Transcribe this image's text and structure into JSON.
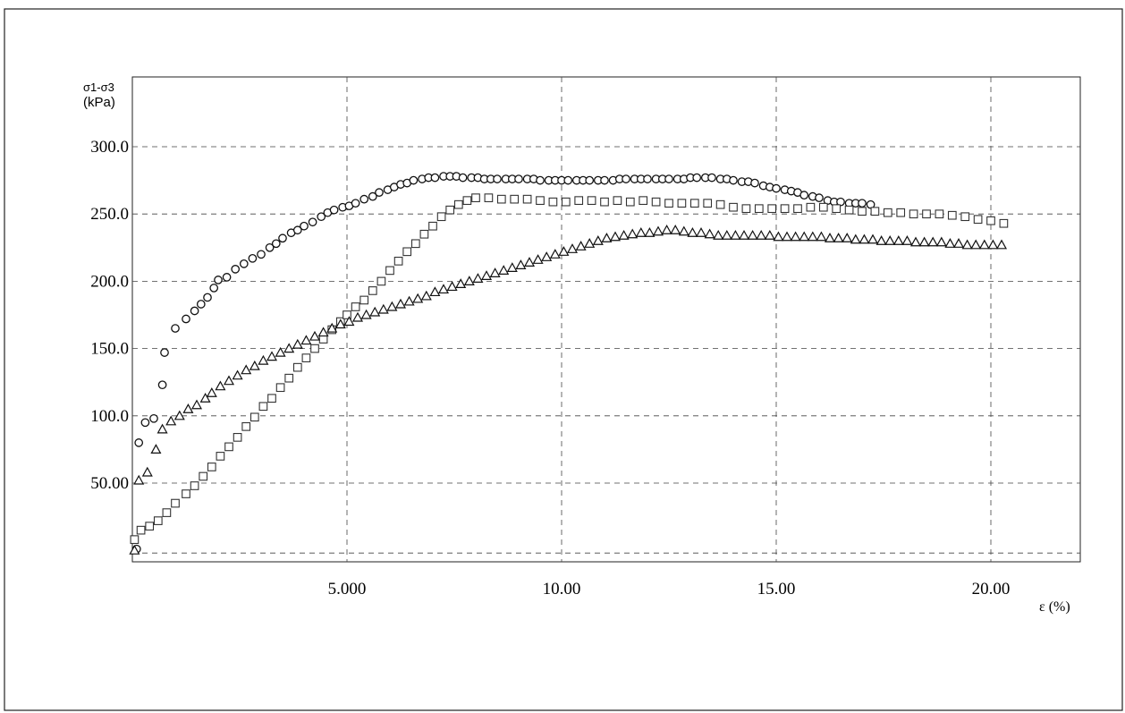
{
  "chart_data": {
    "type": "scatter",
    "ylabel_symbol": "σ1-σ3",
    "ylabel_unit": "(kPa)",
    "xlabel": "ε (%)",
    "xlim": [
      0,
      22.2
    ],
    "ylim": [
      -5,
      350
    ],
    "x_ticks": [
      {
        "value": 5,
        "label": "5.000"
      },
      {
        "value": 10,
        "label": "10.00"
      },
      {
        "value": 15,
        "label": "15.00"
      },
      {
        "value": 20,
        "label": "20.00"
      }
    ],
    "y_ticks": [
      {
        "value": 50,
        "label": "50.00"
      },
      {
        "value": 100,
        "label": "100.0"
      },
      {
        "value": 150,
        "label": "150.0"
      },
      {
        "value": 200,
        "label": "200.0"
      },
      {
        "value": 250,
        "label": "250.0"
      },
      {
        "value": 300,
        "label": "300.0"
      }
    ],
    "grid": true,
    "series": [
      {
        "marker": "circle",
        "x": [
          0.1,
          0.15,
          0.3,
          0.5,
          0.7,
          0.75,
          1.0,
          1.25,
          1.45,
          1.6,
          1.75,
          1.9,
          2.0,
          2.2,
          2.4,
          2.6,
          2.8,
          3.0,
          3.2,
          3.35,
          3.5,
          3.7,
          3.85,
          4.0,
          4.2,
          4.4,
          4.55,
          4.7,
          4.9,
          5.05,
          5.2,
          5.4,
          5.6,
          5.75,
          5.95,
          6.1,
          6.25,
          6.4,
          6.55,
          6.75,
          6.9,
          7.05,
          7.25,
          7.4,
          7.55,
          7.7,
          7.9,
          8.05,
          8.2,
          8.35,
          8.5,
          8.7,
          8.85,
          9.0,
          9.2,
          9.35,
          9.5,
          9.7,
          9.85,
          10.0,
          10.15,
          10.35,
          10.5,
          10.65,
          10.85,
          11.0,
          11.2,
          11.35,
          11.5,
          11.7,
          11.85,
          12.0,
          12.2,
          12.35,
          12.5,
          12.7,
          12.85,
          13.0,
          13.15,
          13.35,
          13.5,
          13.7,
          13.85,
          14.0,
          14.2,
          14.35,
          14.5,
          14.7,
          14.85,
          15.0,
          15.2,
          15.35,
          15.5,
          15.65,
          15.85,
          16.0,
          16.2,
          16.35,
          16.5,
          16.7,
          16.85,
          17.0,
          17.2
        ],
        "y": [
          1,
          80,
          95,
          98,
          123,
          147,
          165,
          172,
          178,
          183,
          188,
          195,
          201,
          203,
          209,
          213,
          217,
          220,
          225,
          228,
          232,
          236,
          238,
          241,
          244,
          248,
          251,
          253,
          255,
          256,
          258,
          261,
          263,
          266,
          268,
          270,
          272,
          273,
          275,
          276,
          277,
          277,
          278,
          278,
          278,
          277,
          277,
          277,
          276,
          276,
          276,
          276,
          276,
          276,
          276,
          276,
          275,
          275,
          275,
          275,
          275,
          275,
          275,
          275,
          275,
          275,
          275,
          276,
          276,
          276,
          276,
          276,
          276,
          276,
          276,
          276,
          276,
          277,
          277,
          277,
          277,
          276,
          276,
          275,
          274,
          274,
          273,
          271,
          270,
          269,
          268,
          267,
          266,
          264,
          263,
          262,
          260,
          259,
          259,
          258,
          258,
          258,
          257
        ]
      },
      {
        "marker": "square",
        "x": [
          0.05,
          0.2,
          0.4,
          0.6,
          0.8,
          1.0,
          1.25,
          1.45,
          1.65,
          1.85,
          2.05,
          2.25,
          2.45,
          2.65,
          2.85,
          3.05,
          3.25,
          3.45,
          3.65,
          3.85,
          4.05,
          4.25,
          4.45,
          4.65,
          4.85,
          5.0,
          5.2,
          5.4,
          5.6,
          5.8,
          6.0,
          6.2,
          6.4,
          6.6,
          6.8,
          7.0,
          7.2,
          7.4,
          7.6,
          7.8,
          8.0,
          8.3,
          8.6,
          8.9,
          9.2,
          9.5,
          9.8,
          10.1,
          10.4,
          10.7,
          11.0,
          11.3,
          11.6,
          11.9,
          12.2,
          12.5,
          12.8,
          13.1,
          13.4,
          13.7,
          14.0,
          14.3,
          14.6,
          14.9,
          15.2,
          15.5,
          15.8,
          16.1,
          16.4,
          16.7,
          17.0,
          17.3,
          17.6,
          17.9,
          18.2,
          18.5,
          18.8,
          19.1,
          19.4,
          19.7,
          20.0,
          20.3
        ],
        "y": [
          8,
          15,
          18,
          22,
          28,
          35,
          42,
          48,
          55,
          62,
          70,
          77,
          84,
          92,
          99,
          107,
          113,
          121,
          128,
          136,
          143,
          150,
          157,
          164,
          170,
          175,
          181,
          186,
          193,
          200,
          208,
          215,
          222,
          228,
          235,
          241,
          248,
          253,
          257,
          260,
          262,
          262,
          261,
          261,
          261,
          260,
          259,
          259,
          260,
          260,
          259,
          260,
          259,
          260,
          259,
          258,
          258,
          258,
          258,
          257,
          255,
          254,
          254,
          254,
          254,
          254,
          255,
          255,
          254,
          253,
          252,
          252,
          251,
          251,
          250,
          250,
          250,
          249,
          248,
          246,
          245,
          243
        ]
      },
      {
        "marker": "triangle",
        "x": [
          0.05,
          0.15,
          0.35,
          0.55,
          0.7,
          0.9,
          1.1,
          1.3,
          1.5,
          1.7,
          1.85,
          2.05,
          2.25,
          2.45,
          2.65,
          2.85,
          3.05,
          3.25,
          3.45,
          3.65,
          3.85,
          4.05,
          4.25,
          4.45,
          4.65,
          4.85,
          5.05,
          5.25,
          5.45,
          5.65,
          5.85,
          6.05,
          6.25,
          6.45,
          6.65,
          6.85,
          7.05,
          7.25,
          7.45,
          7.65,
          7.85,
          8.05,
          8.25,
          8.45,
          8.65,
          8.85,
          9.05,
          9.25,
          9.45,
          9.65,
          9.85,
          10.05,
          10.25,
          10.45,
          10.65,
          10.85,
          11.05,
          11.25,
          11.45,
          11.65,
          11.85,
          12.05,
          12.25,
          12.45,
          12.65,
          12.85,
          13.05,
          13.25,
          13.45,
          13.65,
          13.85,
          14.05,
          14.25,
          14.45,
          14.65,
          14.85,
          15.05,
          15.25,
          15.45,
          15.65,
          15.85,
          16.05,
          16.25,
          16.45,
          16.65,
          16.85,
          17.05,
          17.25,
          17.45,
          17.65,
          17.85,
          18.05,
          18.25,
          18.45,
          18.65,
          18.85,
          19.05,
          19.25,
          19.45,
          19.65,
          19.85,
          20.05,
          20.25
        ],
        "y": [
          0,
          52,
          58,
          75,
          90,
          96,
          100,
          105,
          108,
          113,
          117,
          122,
          126,
          130,
          134,
          137,
          141,
          144,
          147,
          150,
          153,
          156,
          159,
          162,
          165,
          168,
          170,
          173,
          175,
          177,
          179,
          181,
          183,
          185,
          187,
          189,
          192,
          194,
          196,
          198,
          200,
          202,
          204,
          206,
          208,
          210,
          212,
          214,
          216,
          218,
          220,
          222,
          224,
          226,
          228,
          230,
          232,
          233,
          234,
          235,
          236,
          236,
          237,
          238,
          238,
          237,
          236,
          236,
          235,
          234,
          234,
          234,
          234,
          234,
          234,
          234,
          233,
          233,
          233,
          233,
          233,
          233,
          232,
          232,
          232,
          231,
          231,
          231,
          230,
          230,
          230,
          230,
          229,
          229,
          229,
          229,
          228,
          228,
          227,
          227,
          227,
          227,
          227
        ]
      }
    ]
  }
}
